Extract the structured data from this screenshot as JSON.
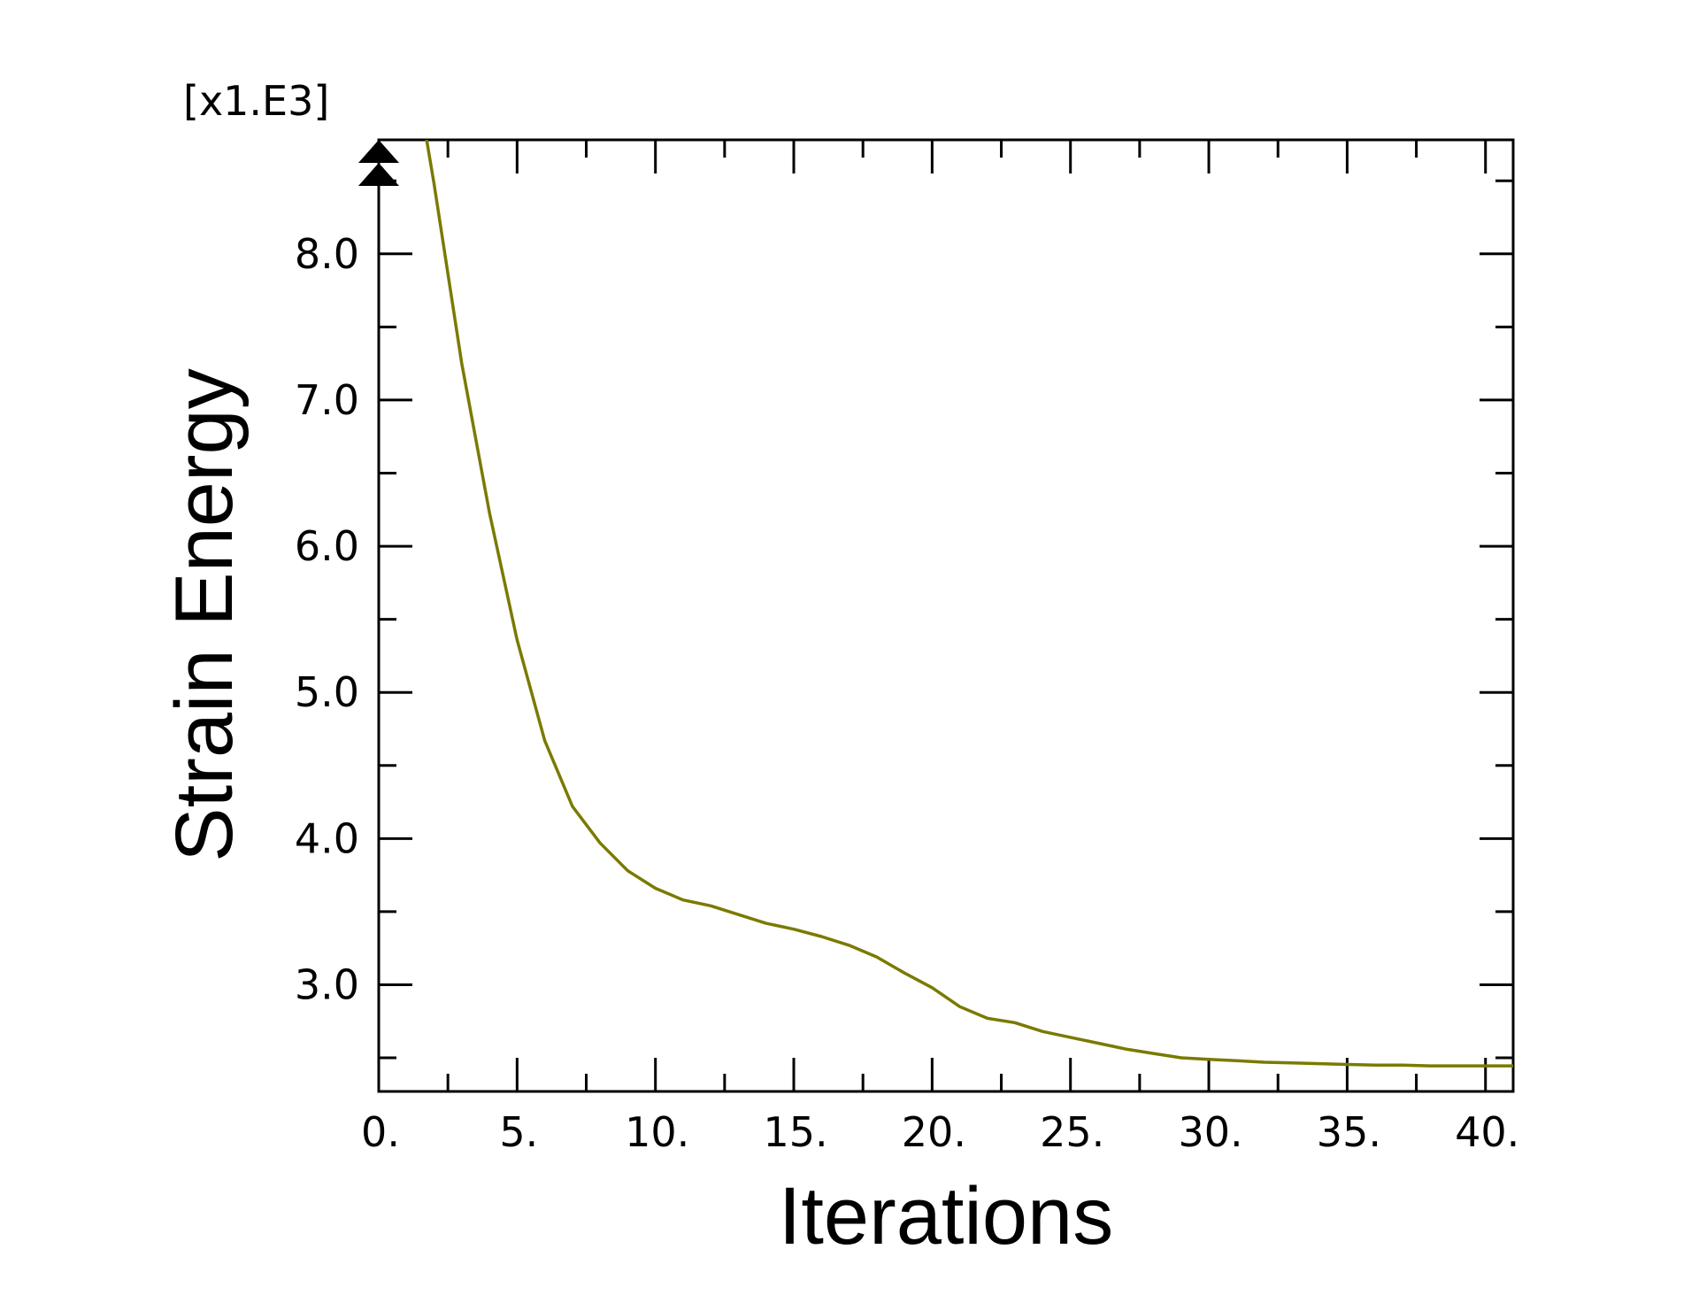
{
  "chart_data": {
    "type": "line",
    "xlabel": "Iterations",
    "ylabel": "Strain Energy",
    "y_multiplier": "[x1.E3]",
    "xlim": [
      0,
      41
    ],
    "ylim": [
      2.27,
      8.78
    ],
    "x_ticks": [
      0,
      5,
      10,
      15,
      20,
      25,
      30,
      35,
      40
    ],
    "x_tick_labels": [
      "0.",
      "5.",
      "10.",
      "15.",
      "20.",
      "25.",
      "30.",
      "35.",
      "40."
    ],
    "y_ticks": [
      3.0,
      4.0,
      5.0,
      6.0,
      7.0,
      8.0
    ],
    "y_tick_labels": [
      "3.0",
      "4.0",
      "5.0",
      "6.0",
      "7.0",
      "8.0"
    ],
    "grid": false,
    "overflow_marker": "top-left",
    "series": [
      {
        "color": "#7a7a00",
        "x": [
          1,
          2,
          3,
          4,
          5,
          6,
          7,
          8,
          9,
          10,
          11,
          12,
          13,
          14,
          15,
          16,
          17,
          18,
          19,
          20,
          21,
          22,
          23,
          24,
          25,
          26,
          27,
          28,
          29,
          30,
          31,
          32,
          33,
          34,
          35,
          36,
          37,
          38,
          39,
          40,
          41
        ],
        "values": [
          9.6,
          8.48,
          7.25,
          6.23,
          5.36,
          4.67,
          4.22,
          3.97,
          3.78,
          3.66,
          3.58,
          3.54,
          3.48,
          3.42,
          3.38,
          3.33,
          3.27,
          3.19,
          3.08,
          2.98,
          2.85,
          2.77,
          2.74,
          2.68,
          2.64,
          2.6,
          2.56,
          2.53,
          2.5,
          2.49,
          2.48,
          2.47,
          2.465,
          2.46,
          2.455,
          2.45,
          2.45,
          2.445,
          2.445,
          2.445,
          2.445
        ]
      }
    ]
  }
}
